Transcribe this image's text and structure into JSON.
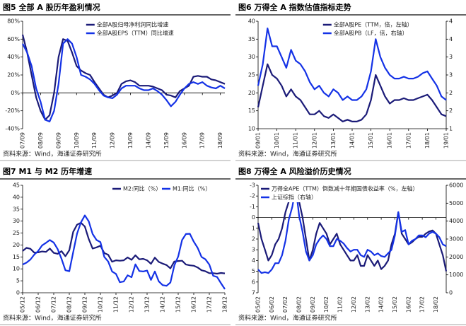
{
  "chart_data": [
    {
      "type": "line",
      "title": "图5  全部 A 股历年盈利情况",
      "source": "资料来源：Wind，海通证券研究所",
      "categories": [
        "07/09",
        null,
        null,
        null,
        "08/09",
        null,
        null,
        null,
        "09/09",
        null,
        null,
        null,
        "10/09",
        null,
        null,
        null,
        "11/09",
        null,
        null,
        null,
        "12/09",
        null,
        null,
        null,
        "13/09",
        null,
        null,
        null,
        "14/09",
        null,
        null,
        null,
        "15/09",
        null,
        null,
        null,
        "16/09",
        null,
        null,
        null,
        "17/09",
        null,
        null,
        null,
        "18/09",
        null
      ],
      "series": [
        {
          "name": "全部A股归母净利润同比增速",
          "color": "#1b1b78",
          "values": [
            65,
            45,
            20,
            -5,
            -20,
            -30,
            -25,
            0,
            40,
            60,
            58,
            45,
            30,
            25,
            22,
            20,
            12,
            5,
            -2,
            -5,
            -3,
            0,
            10,
            13,
            14,
            12,
            8,
            8,
            8,
            7,
            5,
            3,
            -2,
            -3,
            -5,
            2,
            5,
            8,
            18,
            19,
            18,
            18,
            15,
            14,
            12,
            10
          ]
        },
        {
          "name": "全部A股EPS（TTM）同比增速",
          "color": "#1432e6",
          "values": [
            55,
            45,
            30,
            5,
            -10,
            -30,
            -32,
            -20,
            10,
            55,
            60,
            55,
            40,
            20,
            18,
            15,
            10,
            3,
            -3,
            -5,
            -6,
            -2,
            5,
            8,
            8,
            8,
            5,
            3,
            3,
            5,
            2,
            -2,
            -8,
            -15,
            -10,
            -2,
            5,
            10,
            12,
            10,
            12,
            8,
            6,
            5,
            8,
            5
          ]
        }
      ],
      "ylim": [
        -40,
        80
      ],
      "yticks": [
        {
          "value": -40,
          "label": "-40%"
        },
        {
          "value": -20,
          "label": "-20%"
        },
        {
          "value": 0,
          "label": "0%"
        },
        {
          "value": 20,
          "label": "20%"
        },
        {
          "value": 40,
          "label": "40%"
        },
        {
          "value": 60,
          "label": "60%"
        },
        {
          "value": 80,
          "label": "80%"
        }
      ]
    },
    {
      "type": "line",
      "title": "图6  万得全 A 指数估值指标走势",
      "source": "资料来源：Wind，海通证券研究所",
      "categories": [
        "09/01",
        null,
        null,
        null,
        "10/01",
        null,
        null,
        null,
        "11/01",
        null,
        null,
        null,
        "12/01",
        null,
        null,
        null,
        "13/01",
        null,
        null,
        null,
        "14/01",
        null,
        null,
        null,
        "15/01",
        null,
        null,
        null,
        "16/01",
        null,
        null,
        null,
        "17/01",
        null,
        null,
        null,
        "18/01",
        null,
        null,
        null,
        "19/01"
      ],
      "series": [
        {
          "name": "全部A股PE（TTM，倍，左轴）",
          "color": "#1b1b78",
          "values": [
            16,
            22,
            28,
            25,
            24,
            22,
            19,
            21,
            19,
            18,
            16,
            14,
            14,
            15,
            13.5,
            13,
            14,
            13,
            12,
            12.5,
            12,
            12,
            12.5,
            14,
            18,
            25,
            22,
            19,
            17,
            18,
            18,
            18.5,
            18,
            18,
            18.5,
            19,
            19.5,
            18,
            16,
            14,
            13.5
          ]
        },
        {
          "name": "全部A股PB（LF，倍，右轴）",
          "color": "#1432e6",
          "axis": "y2",
          "values": [
            2.2,
            2.8,
            3.8,
            3.3,
            3.3,
            3.0,
            2.7,
            3.2,
            2.9,
            2.8,
            2.6,
            2.3,
            2.1,
            2.2,
            2.0,
            1.9,
            2.1,
            2.0,
            1.8,
            1.9,
            1.8,
            1.8,
            1.9,
            2.1,
            2.6,
            3.5,
            3.0,
            2.7,
            2.5,
            2.4,
            2.4,
            2.45,
            2.4,
            2.4,
            2.45,
            2.55,
            2.6,
            2.4,
            2.2,
            1.9,
            1.8
          ]
        }
      ],
      "ylim": [
        10,
        40
      ],
      "yticks": [
        10,
        15,
        20,
        25,
        30,
        35,
        40
      ],
      "y2lim": [
        1,
        4
      ],
      "y2ticks": [
        1,
        {
          "value": 1.5,
          "label": "2"
        },
        2,
        {
          "value": 2.5,
          "label": "3"
        },
        3,
        {
          "value": 3.5,
          "label": "4"
        },
        4
      ]
    },
    {
      "type": "line",
      "title": "图7  M1 与 M2 历年增速",
      "source": "资料来源：Wind，海通证券研究所",
      "categories": [
        "05/12",
        null,
        null,
        null,
        "06/12",
        null,
        null,
        null,
        "07/12",
        null,
        null,
        null,
        "08/12",
        null,
        null,
        null,
        "09/12",
        null,
        null,
        null,
        "10/12",
        null,
        null,
        null,
        "11/12",
        null,
        null,
        null,
        "12/12",
        null,
        null,
        null,
        "13/12",
        null,
        null,
        null,
        "14/12",
        null,
        null,
        null,
        "15/12",
        null,
        null,
        null,
        "16/12",
        null,
        null,
        null,
        "17/12",
        null,
        null,
        null,
        "18/12"
      ],
      "series": [
        {
          "name": "M2:同比（%）",
          "color": "#1b1b78",
          "values": [
            17.5,
            18.8,
            18.4,
            16.8,
            16.9,
            17.3,
            17.1,
            18.5,
            16.7,
            16.3,
            17.4,
            15.3,
            17.8,
            25.5,
            28.5,
            29.3,
            27.7,
            22.5,
            18.5,
            19,
            19.7,
            16.6,
            15.9,
            13,
            13.6,
            13.4,
            13.6,
            14.8,
            13.8,
            15.7,
            14,
            14.2,
            13.6,
            12.1,
            14.7,
            12.9,
            12.2,
            11.6,
            10.2,
            13.1,
            13.3,
            13.4,
            11.8,
            11.5,
            11.3,
            10.6,
            9.4,
            9.0,
            8.2,
            8.2,
            8.0,
            8.3,
            8.1
          ]
        },
        {
          "name": "M1:同比（%）",
          "color": "#1432e6",
          "values": [
            11.8,
            12.6,
            13.9,
            16,
            17.5,
            19.8,
            20.9,
            22.1,
            21,
            18.3,
            14.2,
            9.4,
            9,
            17,
            24.8,
            29.5,
            32.4,
            29.9,
            24.6,
            22.1,
            21.2,
            15,
            13.1,
            8.9,
            7.9,
            4.4,
            4.7,
            7.3,
            6.5,
            11.9,
            9.1,
            8.9,
            9.3,
            5.4,
            8.9,
            4.8,
            3.2,
            2.9,
            4.3,
            11.4,
            15.2,
            22.1,
            24.6,
            24.7,
            21.4,
            18.8,
            15,
            14,
            11.8,
            7.1,
            6.6,
            4,
            1.5
          ]
        }
      ],
      "ylim": [
        0,
        45
      ],
      "yticks": [
        0,
        5,
        10,
        15,
        20,
        25,
        30,
        35,
        40,
        45
      ]
    },
    {
      "type": "line",
      "title": "图8  万得全 A 风险溢价历史情况",
      "source": "资料来源：Wind，海通证券研究所",
      "categories": [
        "05/02",
        null,
        null,
        null,
        "06/02",
        null,
        null,
        null,
        "07/02",
        null,
        null,
        null,
        "08/02",
        null,
        null,
        null,
        "09/02",
        null,
        null,
        null,
        "10/02",
        null,
        null,
        null,
        "11/02",
        null,
        null,
        null,
        "12/02",
        null,
        null,
        null,
        "13/02",
        null,
        null,
        null,
        "14/02",
        null,
        null,
        null,
        "15/02",
        null,
        null,
        null,
        "16/02",
        null,
        null,
        null,
        "17/02",
        null,
        null,
        null,
        "18/02",
        null,
        null,
        null
      ],
      "series": [
        {
          "name": "万得全APE（TTM）倒数减十年期国债收益率（%，左轴）",
          "color": "#1b1b78",
          "values": [
            0.5,
            2,
            3,
            4,
            3.5,
            2.5,
            2,
            1,
            -0.5,
            -1.5,
            -2.2,
            -2.5,
            -1.5,
            0,
            2,
            4,
            3,
            1.5,
            0.5,
            1,
            1.5,
            2.5,
            2,
            1.5,
            2.5,
            3,
            3.5,
            4,
            4,
            3.5,
            4.5,
            4.5,
            3.5,
            4,
            4.5,
            4,
            4.8,
            4.5,
            4,
            2.5,
            1.5,
            -0.5,
            1.5,
            2,
            2.5,
            2.3,
            2,
            1.8,
            1.8,
            1.5,
            1.3,
            1.2,
            1.5,
            2.5,
            3.5,
            5
          ]
        },
        {
          "name": "上证综指（右轴）",
          "color": "#1432e6",
          "axis": "y2",
          "values": [
            1300,
            1100,
            1150,
            1100,
            1300,
            1650,
            1650,
            2100,
            2900,
            4100,
            4800,
            5900,
            4300,
            3400,
            2300,
            1800,
            2100,
            2700,
            3000,
            3200,
            3000,
            2600,
            2600,
            3000,
            2900,
            2750,
            2500,
            2300,
            2400,
            2400,
            2100,
            2000,
            2400,
            2300,
            2100,
            2200,
            2050,
            2000,
            2200,
            2400,
            3200,
            4500,
            3400,
            3500,
            2700,
            2900,
            3000,
            3200,
            3200,
            3100,
            3300,
            3400,
            3300,
            3100,
            2700,
            2600
          ]
        }
      ],
      "ylim": [
        7,
        -3
      ],
      "yticks": [
        -3,
        -2,
        -1,
        0,
        1,
        2,
        3,
        4,
        5,
        6,
        7
      ],
      "y2lim": [
        0,
        6000
      ],
      "y2ticks": [
        0,
        1000,
        2000,
        3000,
        4000,
        5000,
        6000
      ]
    }
  ]
}
